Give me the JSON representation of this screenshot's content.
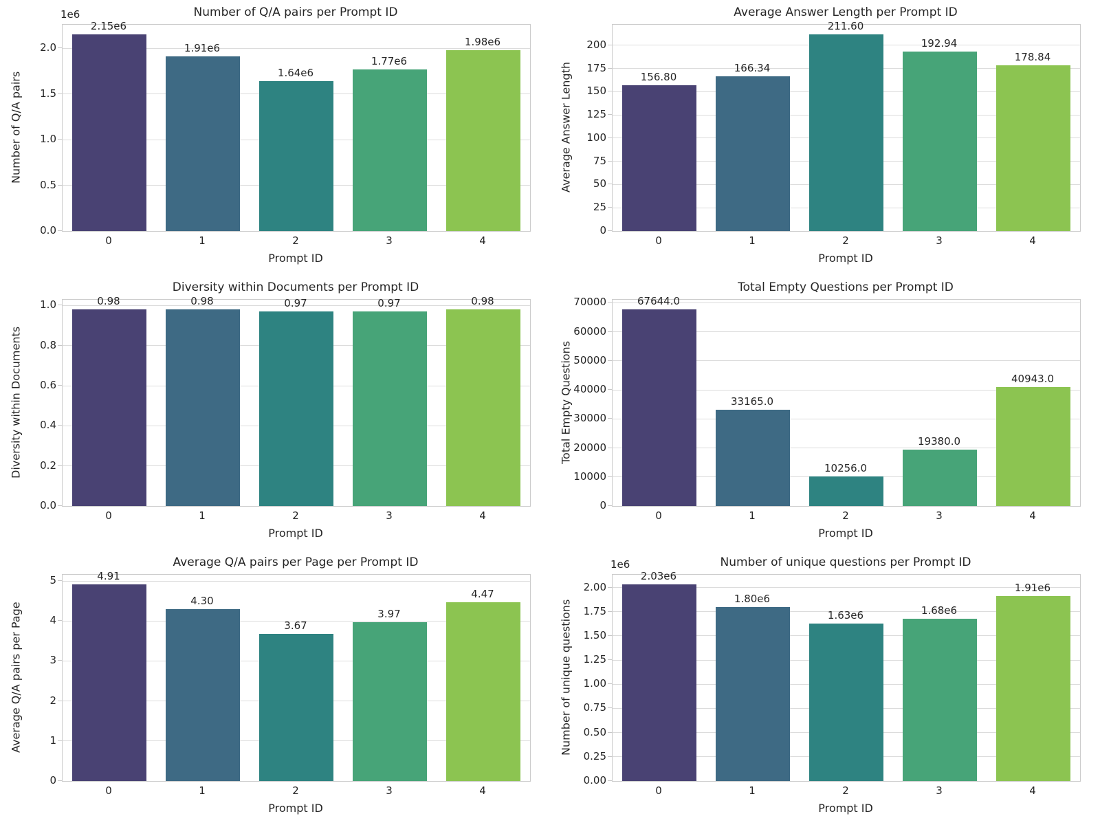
{
  "figure": {
    "type": "matplotlib-figure",
    "background": "#ffffff",
    "grid": true,
    "layout": {
      "rows": 3,
      "cols": 2
    },
    "palette": [
      "#494273",
      "#3e6a84",
      "#2e8381",
      "#47a478",
      "#8cc451"
    ],
    "style": {
      "grid_color": "#dcdcdc",
      "spine_color": "#cccccc",
      "tick_mark_color": "#c7c7c7",
      "text_color": "#262626"
    }
  },
  "chart_data": [
    {
      "type": "bar",
      "title": "Number of Q/A pairs per Prompt ID",
      "xlabel": "Prompt ID",
      "ylabel": "Number of Q/A pairs",
      "categories": [
        "0",
        "1",
        "2",
        "3",
        "4"
      ],
      "values": [
        2150000,
        1910000,
        1640000,
        1770000,
        1980000
      ],
      "bar_labels": [
        "2.15e6",
        "1.91e6",
        "1.64e6",
        "1.77e6",
        "1.98e6"
      ],
      "ytick_values": [
        0,
        500000,
        1000000,
        1500000,
        2000000
      ],
      "ytick_labels": [
        "0.0",
        "0.5",
        "1.0",
        "1.5",
        "2.0"
      ],
      "offset_label": "1e6",
      "ymax": 2257500,
      "legend": null
    },
    {
      "type": "bar",
      "title": "Average Answer Length per Prompt ID",
      "xlabel": "Prompt ID",
      "ylabel": "Average Answer Length",
      "categories": [
        "0",
        "1",
        "2",
        "3",
        "4"
      ],
      "values": [
        156.8,
        166.34,
        211.6,
        192.94,
        178.84
      ],
      "bar_labels": [
        "156.80",
        "166.34",
        "211.60",
        "192.94",
        "178.84"
      ],
      "ytick_values": [
        0,
        25,
        50,
        75,
        100,
        125,
        150,
        175,
        200
      ],
      "ytick_labels": [
        "0",
        "25",
        "50",
        "75",
        "100",
        "125",
        "150",
        "175",
        "200"
      ],
      "offset_label": null,
      "ymax": 222.18,
      "legend": null
    },
    {
      "type": "bar",
      "title": "Diversity within Documents per Prompt ID",
      "xlabel": "Prompt ID",
      "ylabel": "Diversity within Documents",
      "categories": [
        "0",
        "1",
        "2",
        "3",
        "4"
      ],
      "values": [
        0.98,
        0.98,
        0.97,
        0.97,
        0.98
      ],
      "bar_labels": [
        "0.98",
        "0.98",
        "0.97",
        "0.97",
        "0.98"
      ],
      "ytick_values": [
        0,
        0.2,
        0.4,
        0.6,
        0.8,
        1.0
      ],
      "ytick_labels": [
        "0.0",
        "0.2",
        "0.4",
        "0.6",
        "0.8",
        "1.0"
      ],
      "offset_label": null,
      "ymax": 1.029,
      "legend": null
    },
    {
      "type": "bar",
      "title": "Total Empty Questions per Prompt ID",
      "xlabel": "Prompt ID",
      "ylabel": "Total Empty Questions",
      "categories": [
        "0",
        "1",
        "2",
        "3",
        "4"
      ],
      "values": [
        67644,
        33165,
        10256,
        19380,
        40943
      ],
      "bar_labels": [
        "67644.0",
        "33165.0",
        "10256.0",
        "19380.0",
        "40943.0"
      ],
      "ytick_values": [
        0,
        10000,
        20000,
        30000,
        40000,
        50000,
        60000,
        70000
      ],
      "ytick_labels": [
        "0",
        "10000",
        "20000",
        "30000",
        "40000",
        "50000",
        "60000",
        "70000"
      ],
      "offset_label": null,
      "ymax": 71026,
      "legend": null
    },
    {
      "type": "bar",
      "title": "Average Q/A pairs per Page per Prompt ID",
      "xlabel": "Prompt ID",
      "ylabel": "Average Q/A pairs per Page",
      "categories": [
        "0",
        "1",
        "2",
        "3",
        "4"
      ],
      "values": [
        4.91,
        4.3,
        3.67,
        3.97,
        4.47
      ],
      "bar_labels": [
        "4.91",
        "4.30",
        "3.67",
        "3.97",
        "4.47"
      ],
      "ytick_values": [
        0,
        1,
        2,
        3,
        4,
        5
      ],
      "ytick_labels": [
        "0",
        "1",
        "2",
        "3",
        "4",
        "5"
      ],
      "offset_label": null,
      "ymax": 5.1555,
      "legend": null
    },
    {
      "type": "bar",
      "title": "Number of unique questions per Prompt ID",
      "xlabel": "Prompt ID",
      "ylabel": "Number of unique questions",
      "categories": [
        "0",
        "1",
        "2",
        "3",
        "4"
      ],
      "values": [
        2030000,
        1800000,
        1630000,
        1680000,
        1910000
      ],
      "bar_labels": [
        "2.03e6",
        "1.80e6",
        "1.63e6",
        "1.68e6",
        "1.91e6"
      ],
      "ytick_values": [
        0,
        250000,
        500000,
        750000,
        1000000,
        1250000,
        1500000,
        1750000,
        2000000
      ],
      "ytick_labels": [
        "0.00",
        "0.25",
        "0.50",
        "0.75",
        "1.00",
        "1.25",
        "1.50",
        "1.75",
        "2.00"
      ],
      "offset_label": "1e6",
      "ymax": 2131500,
      "legend": null
    }
  ]
}
